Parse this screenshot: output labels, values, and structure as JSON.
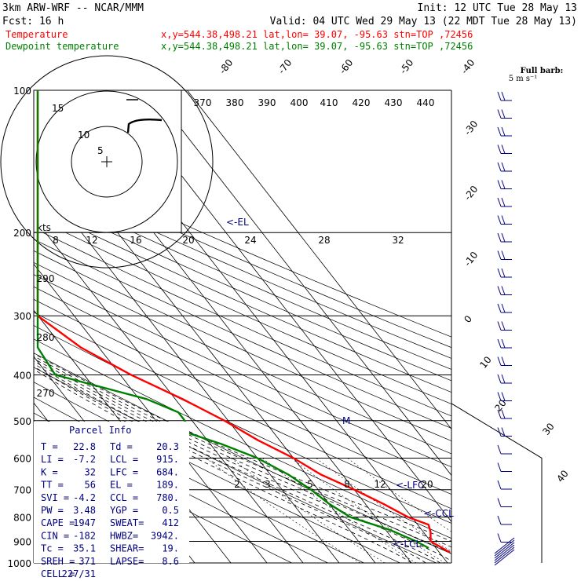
{
  "header": {
    "line1_left": "3km ARW-WRF -- NCAR/MMM",
    "line1_right": "Init: 12 UTC Tue 28 May 13",
    "line2_left": "Fcst:   16 h",
    "line2_right": "Valid: 04 UTC Wed 29 May 13 (22 MDT Tue 28 May 13)",
    "rows": [
      {
        "name": "Temperature",
        "info": "x,y=544.38,498.21   lat,lon= 39.07, -95.63   stn=TOP ,72456",
        "color": "#ff0000"
      },
      {
        "name": "Dewpoint temperature",
        "info": "x,y=544.38,498.21   lat,lon= 39.07, -95.63   stn=TOP ,72456",
        "color": "#008000"
      }
    ]
  },
  "barb_legend": {
    "line1": "Full barb:",
    "line2": "5 m s⁻¹"
  },
  "chart_data": {
    "type": "line",
    "subtype": "skew-T log-P sounding",
    "pressure_levels": [
      100,
      200,
      300,
      400,
      500,
      600,
      700,
      800,
      900,
      1000
    ],
    "pressure_labels": [
      "100",
      "200",
      "300",
      "400",
      "500",
      "600",
      "700",
      "800",
      "900",
      "1000"
    ],
    "isotherm_labels": [
      "-80",
      "-70",
      "-60",
      "-50",
      "-40",
      "-30",
      "-20",
      "-10",
      "0",
      "10",
      "20",
      "30",
      "40"
    ],
    "theta_labels": [
      "370",
      "380",
      "390",
      "400",
      "410",
      "420",
      "430",
      "440",
      "290",
      "280",
      "270"
    ],
    "mixing_ratio_labels": [
      "2",
      "3",
      "5",
      "8",
      "12",
      "20"
    ],
    "series": [
      {
        "name": "Temperature",
        "color": "#ff0000",
        "points": [
          [
            100,
            -52
          ],
          [
            120,
            -54
          ],
          [
            150,
            -57
          ],
          [
            170,
            -61
          ],
          [
            190,
            -62
          ],
          [
            200,
            -61
          ],
          [
            250,
            -52
          ],
          [
            300,
            -44
          ],
          [
            350,
            -35
          ],
          [
            400,
            -27
          ],
          [
            450,
            -18
          ],
          [
            500,
            -11
          ],
          [
            550,
            -6
          ],
          [
            600,
            0
          ],
          [
            650,
            4
          ],
          [
            700,
            10
          ],
          [
            750,
            15
          ],
          [
            800,
            19
          ],
          [
            830,
            23
          ],
          [
            860,
            22
          ],
          [
            900,
            20
          ],
          [
            950,
            24
          ]
        ]
      },
      {
        "name": "Dewpoint temperature",
        "color": "#008000",
        "points": [
          [
            100,
            -70
          ],
          [
            130,
            -75
          ],
          [
            150,
            -80
          ],
          [
            170,
            -69
          ],
          [
            190,
            -74
          ],
          [
            210,
            -68
          ],
          [
            250,
            -59
          ],
          [
            290,
            -50
          ],
          [
            320,
            -56
          ],
          [
            350,
            -94
          ],
          [
            400,
            -48
          ],
          [
            450,
            -28
          ],
          [
            480,
            -22
          ],
          [
            500,
            -22
          ],
          [
            530,
            -24
          ],
          [
            560,
            -17
          ],
          [
            600,
            -10
          ],
          [
            650,
            -5
          ],
          [
            700,
            -2
          ],
          [
            750,
            0
          ],
          [
            800,
            3
          ],
          [
            850,
            11
          ],
          [
            900,
            16
          ],
          [
            930,
            18
          ]
        ]
      }
    ],
    "markers": [
      "<-EL",
      "<-LFC",
      "<-CCL",
      "<-LCL",
      "M"
    ],
    "hodograph": {
      "ring_labels": [
        "5",
        "10",
        "15"
      ],
      "speed_labels": [
        "8",
        "12",
        "16",
        "20",
        "24",
        "28",
        "32"
      ],
      "units": "kts"
    }
  },
  "parcel": {
    "title": "Parcel Info",
    "rows": [
      [
        "T  =",
        "22.8",
        "Td =",
        "20.3"
      ],
      [
        "LI =",
        "-7.2",
        "LCL =",
        "915."
      ],
      [
        "K  =",
        "32",
        "LFC =",
        "684."
      ],
      [
        "TT =",
        "56",
        "EL =",
        "189."
      ],
      [
        "SVI =",
        "-4.2",
        "CCL =",
        "780."
      ],
      [
        "PW =",
        "3.48",
        "YGP =",
        "0.5"
      ],
      [
        "CAPE =",
        "1947",
        "SWEAT=",
        "412"
      ],
      [
        "CIN =",
        "-182",
        "HWBZ=",
        "3942."
      ],
      [
        "Tc =",
        "35.1",
        "SHEAR=",
        "19."
      ],
      [
        "SREH =",
        "371",
        "LAPSE=",
        "8.6"
      ],
      [
        "CELL =",
        "227/31",
        "",
        ""
      ]
    ]
  }
}
